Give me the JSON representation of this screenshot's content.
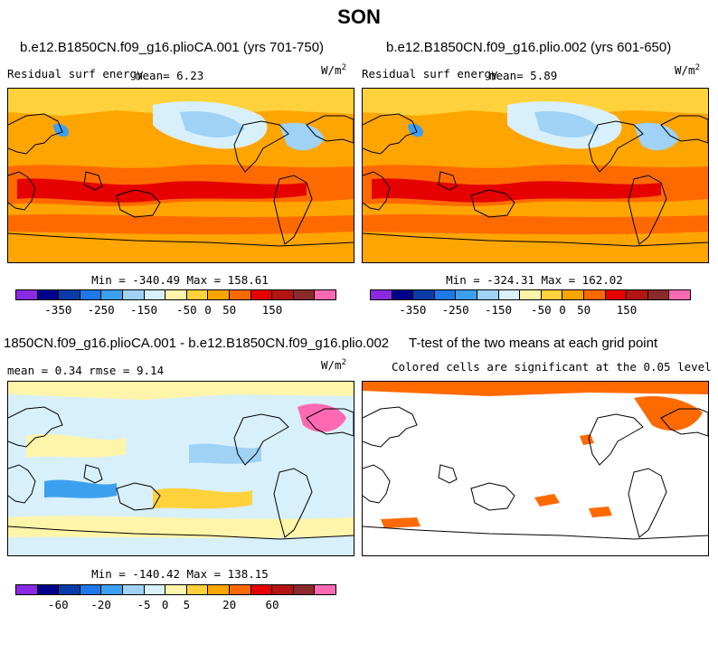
{
  "figure_title": "SON",
  "panels": [
    {
      "title": "b.e12.B1850CN.f09_g16.plioCA.001 (yrs 701-750)",
      "left_label": "Residual surf energy",
      "stat_text": "mean=   6.23",
      "units": "W/m",
      "units_sup": "2",
      "minmax": "Min = -340.49 Max = 158.61",
      "field": "residual_surf_energy"
    },
    {
      "title": "b.e12.B1850CN.f09_g16.plio.002 (yrs 601-650)",
      "left_label": "Residual surf energy",
      "stat_text": "mean=   5.89",
      "units": "W/m",
      "units_sup": "2",
      "minmax": "Min = -324.31 Max = 162.02",
      "field": "residual_surf_energy"
    },
    {
      "title": "1850CN.f09_g16.plioCA.001 - b.e12.B1850CN.f09_g16.plio.002",
      "stat_text": "mean =   0.34    rmse =   9.14",
      "units": "W/m",
      "units_sup": "2",
      "minmax": "Min = -140.42 Max = 138.15",
      "field": "difference"
    },
    {
      "title": "T-test of the two means at each grid point",
      "subtitle": "Colored cells are significant at the 0.05 level",
      "field": "significance"
    }
  ],
  "colorbars": {
    "full": {
      "colors": [
        "#8a2be2",
        "#00008b",
        "#0a3ca8",
        "#1e78e6",
        "#3ca0f0",
        "#9fd2f5",
        "#d8f0fb",
        "#fff5aa",
        "#ffd23c",
        "#ffa500",
        "#ff6a00",
        "#e60000",
        "#b41414",
        "#8b2a2a",
        "#ff69b4"
      ],
      "tick_labels": [
        "-350",
        "-250",
        "-150",
        "-50",
        "0",
        "50",
        "150"
      ],
      "tick_after_cell": [
        2,
        4,
        6,
        8,
        9,
        10,
        12
      ]
    },
    "diff": {
      "colors": [
        "#8a2be2",
        "#00008b",
        "#0a3ca8",
        "#1e78e6",
        "#3ca0f0",
        "#9fd2f5",
        "#d8f0fb",
        "#fff5aa",
        "#ffd23c",
        "#ffa500",
        "#ff6a00",
        "#e60000",
        "#b41414",
        "#8b2a2a",
        "#ff69b4"
      ],
      "tick_labels": [
        "-60",
        "-20",
        "-5",
        "0",
        "5",
        "20",
        "60"
      ],
      "tick_after_cell": [
        2,
        4,
        6,
        7,
        8,
        10,
        12
      ]
    }
  },
  "map_colors": {
    "ocean_base": "#ffa500",
    "tropics": "#ff6a00",
    "tropics_core": "#e60000",
    "midlat": "#ffd23c",
    "cold_light": "#d8f0fb",
    "cold_mid": "#9fd2f5",
    "cold_dark": "#3ca0f0",
    "diff_base": "#d8f0fb",
    "diff_pos": "#fff5aa",
    "diff_pos2": "#ffd23c",
    "diff_neg": "#9fd2f5",
    "diff_neg2": "#3ca0f0",
    "sig": "#ff6a00",
    "coast": "#000000"
  }
}
